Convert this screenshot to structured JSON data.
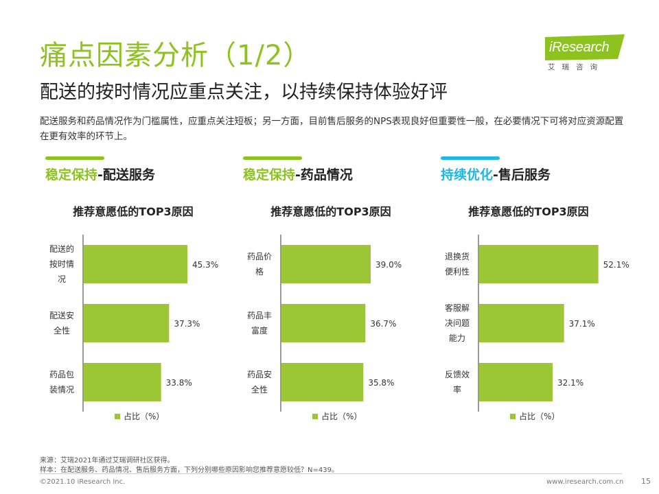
{
  "header": {
    "title": "痛点因素分析（1/2）",
    "subtitle": "配送的按时情况应重点关注，以持续保持体验好评",
    "description": "配送服务和药品情况作为门槛属性，应重点关注短板；另一方面，目前售后服务的NPS表现良好但重要性一般，在必要情况下可将对应资源配置在更有效率的环节上。"
  },
  "logo": {
    "text": "iResearch",
    "sub": "艾瑞咨询"
  },
  "sections": [
    {
      "tag": "稳定保持",
      "rest": "-配送服务",
      "accent": "#8dc21f"
    },
    {
      "tag": "稳定保持",
      "rest": "-药品情况",
      "accent": "#8dc21f"
    },
    {
      "tag": "持续优化",
      "rest": "-售后服务",
      "accent": "#1fb6e8"
    }
  ],
  "chart_data": [
    {
      "type": "bar",
      "orientation": "horizontal",
      "title": "推荐意愿低的TOP3原因",
      "categories": [
        "配送的按时情况",
        "配送安全性",
        "药品包装情况"
      ],
      "category_lines": [
        [
          "配送的",
          "按时情",
          "况"
        ],
        [
          "配送安",
          "全性"
        ],
        [
          "药品包",
          "装情况"
        ]
      ],
      "values": [
        45.3,
        37.3,
        33.8
      ],
      "value_labels": [
        "45.3%",
        "37.3%",
        "33.8%"
      ],
      "legend": "占比（%）",
      "xlim": [
        0,
        60
      ],
      "bar_color": "#9cc635"
    },
    {
      "type": "bar",
      "orientation": "horizontal",
      "title": "推荐意愿低的TOP3原因",
      "categories": [
        "药品价格",
        "药品丰富度",
        "药品安全性"
      ],
      "category_lines": [
        [
          "药品价",
          "格"
        ],
        [
          "药品丰",
          "富度"
        ],
        [
          "药品安",
          "全性"
        ]
      ],
      "values": [
        39.0,
        36.7,
        35.8
      ],
      "value_labels": [
        "39.0%",
        "36.7%",
        "35.8%"
      ],
      "legend": "占比（%）",
      "xlim": [
        0,
        60
      ],
      "bar_color": "#9cc635"
    },
    {
      "type": "bar",
      "orientation": "horizontal",
      "title": "推荐意愿低的TOP3原因",
      "categories": [
        "退换货便利性",
        "客服解决问题能力",
        "反馈效率"
      ],
      "category_lines": [
        [
          "退换货",
          "便利性"
        ],
        [
          "客服解",
          "决问题",
          "能力"
        ],
        [
          "反馈效",
          "率"
        ]
      ],
      "values": [
        52.1,
        37.1,
        32.1
      ],
      "value_labels": [
        "52.1%",
        "37.1%",
        "32.1%"
      ],
      "legend": "占比（%）",
      "xlim": [
        0,
        60
      ],
      "bar_color": "#9cc635"
    }
  ],
  "notes": {
    "source": "来源：艾瑞2021年通过艾瑞调研社区获得。",
    "sample": "样本：在配送服务、药品情况、售后服务方面，下列分别哪些原因影响您推荐意愿较低？N=439。"
  },
  "footer": {
    "copyright": "©2021.10 iResearch Inc.",
    "website": "www.iresearch.com.cn",
    "page": "15"
  }
}
